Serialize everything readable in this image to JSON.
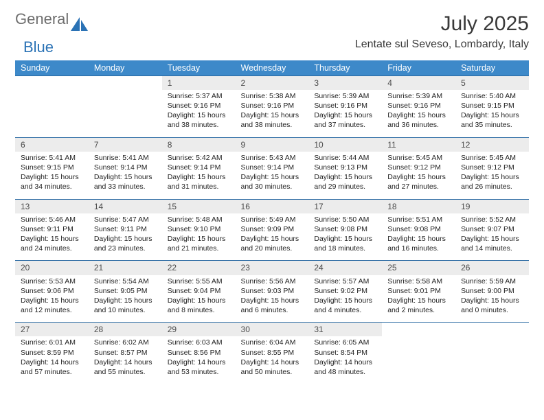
{
  "logo": {
    "text1": "General",
    "text2": "Blue",
    "color1": "#6e6e6e",
    "color2": "#2a72b5"
  },
  "title": "July 2025",
  "location": "Lentate sul Seveso, Lombardy, Italy",
  "header_bg": "#3d89c9",
  "daynum_bg": "#ececec",
  "rule_color": "#2a6aa3",
  "text_color": "#222222",
  "days": [
    "Sunday",
    "Monday",
    "Tuesday",
    "Wednesday",
    "Thursday",
    "Friday",
    "Saturday"
  ],
  "weeks": [
    [
      null,
      null,
      {
        "n": "1",
        "sr": "5:37 AM",
        "ss": "9:16 PM",
        "dl": "15 hours and 38 minutes."
      },
      {
        "n": "2",
        "sr": "5:38 AM",
        "ss": "9:16 PM",
        "dl": "15 hours and 38 minutes."
      },
      {
        "n": "3",
        "sr": "5:39 AM",
        "ss": "9:16 PM",
        "dl": "15 hours and 37 minutes."
      },
      {
        "n": "4",
        "sr": "5:39 AM",
        "ss": "9:16 PM",
        "dl": "15 hours and 36 minutes."
      },
      {
        "n": "5",
        "sr": "5:40 AM",
        "ss": "9:15 PM",
        "dl": "15 hours and 35 minutes."
      }
    ],
    [
      {
        "n": "6",
        "sr": "5:41 AM",
        "ss": "9:15 PM",
        "dl": "15 hours and 34 minutes."
      },
      {
        "n": "7",
        "sr": "5:41 AM",
        "ss": "9:14 PM",
        "dl": "15 hours and 33 minutes."
      },
      {
        "n": "8",
        "sr": "5:42 AM",
        "ss": "9:14 PM",
        "dl": "15 hours and 31 minutes."
      },
      {
        "n": "9",
        "sr": "5:43 AM",
        "ss": "9:14 PM",
        "dl": "15 hours and 30 minutes."
      },
      {
        "n": "10",
        "sr": "5:44 AM",
        "ss": "9:13 PM",
        "dl": "15 hours and 29 minutes."
      },
      {
        "n": "11",
        "sr": "5:45 AM",
        "ss": "9:12 PM",
        "dl": "15 hours and 27 minutes."
      },
      {
        "n": "12",
        "sr": "5:45 AM",
        "ss": "9:12 PM",
        "dl": "15 hours and 26 minutes."
      }
    ],
    [
      {
        "n": "13",
        "sr": "5:46 AM",
        "ss": "9:11 PM",
        "dl": "15 hours and 24 minutes."
      },
      {
        "n": "14",
        "sr": "5:47 AM",
        "ss": "9:11 PM",
        "dl": "15 hours and 23 minutes."
      },
      {
        "n": "15",
        "sr": "5:48 AM",
        "ss": "9:10 PM",
        "dl": "15 hours and 21 minutes."
      },
      {
        "n": "16",
        "sr": "5:49 AM",
        "ss": "9:09 PM",
        "dl": "15 hours and 20 minutes."
      },
      {
        "n": "17",
        "sr": "5:50 AM",
        "ss": "9:08 PM",
        "dl": "15 hours and 18 minutes."
      },
      {
        "n": "18",
        "sr": "5:51 AM",
        "ss": "9:08 PM",
        "dl": "15 hours and 16 minutes."
      },
      {
        "n": "19",
        "sr": "5:52 AM",
        "ss": "9:07 PM",
        "dl": "15 hours and 14 minutes."
      }
    ],
    [
      {
        "n": "20",
        "sr": "5:53 AM",
        "ss": "9:06 PM",
        "dl": "15 hours and 12 minutes."
      },
      {
        "n": "21",
        "sr": "5:54 AM",
        "ss": "9:05 PM",
        "dl": "15 hours and 10 minutes."
      },
      {
        "n": "22",
        "sr": "5:55 AM",
        "ss": "9:04 PM",
        "dl": "15 hours and 8 minutes."
      },
      {
        "n": "23",
        "sr": "5:56 AM",
        "ss": "9:03 PM",
        "dl": "15 hours and 6 minutes."
      },
      {
        "n": "24",
        "sr": "5:57 AM",
        "ss": "9:02 PM",
        "dl": "15 hours and 4 minutes."
      },
      {
        "n": "25",
        "sr": "5:58 AM",
        "ss": "9:01 PM",
        "dl": "15 hours and 2 minutes."
      },
      {
        "n": "26",
        "sr": "5:59 AM",
        "ss": "9:00 PM",
        "dl": "15 hours and 0 minutes."
      }
    ],
    [
      {
        "n": "27",
        "sr": "6:01 AM",
        "ss": "8:59 PM",
        "dl": "14 hours and 57 minutes."
      },
      {
        "n": "28",
        "sr": "6:02 AM",
        "ss": "8:57 PM",
        "dl": "14 hours and 55 minutes."
      },
      {
        "n": "29",
        "sr": "6:03 AM",
        "ss": "8:56 PM",
        "dl": "14 hours and 53 minutes."
      },
      {
        "n": "30",
        "sr": "6:04 AM",
        "ss": "8:55 PM",
        "dl": "14 hours and 50 minutes."
      },
      {
        "n": "31",
        "sr": "6:05 AM",
        "ss": "8:54 PM",
        "dl": "14 hours and 48 minutes."
      },
      null,
      null
    ]
  ],
  "labels": {
    "sunrise": "Sunrise:",
    "sunset": "Sunset:",
    "daylight": "Daylight:"
  }
}
